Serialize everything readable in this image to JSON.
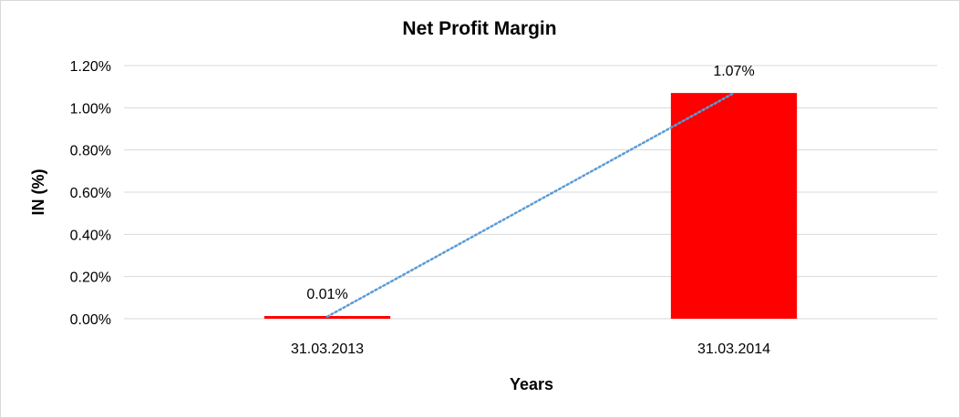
{
  "chart_data": {
    "type": "bar",
    "title": "Net Profit Margin",
    "xlabel": "Years",
    "ylabel": "IN (%)",
    "categories": [
      "31.03.2013",
      "31.03.2014"
    ],
    "values": [
      0.01,
      1.07
    ],
    "data_labels": [
      "0.01%",
      "1.07%"
    ],
    "ylim": [
      0,
      1.2
    ],
    "yticks": [
      0,
      0.2,
      0.4,
      0.6,
      0.8,
      1.0,
      1.2
    ],
    "ytick_labels": [
      "0.00%",
      "0.20%",
      "0.40%",
      "0.60%",
      "0.80%",
      "1.00%",
      "1.20%"
    ],
    "grid": true,
    "legend": "none",
    "trendline": "linear",
    "colors": {
      "bar": "#ff0000",
      "trendline": "#5b9bd5",
      "grid": "#d9d9d9"
    }
  }
}
